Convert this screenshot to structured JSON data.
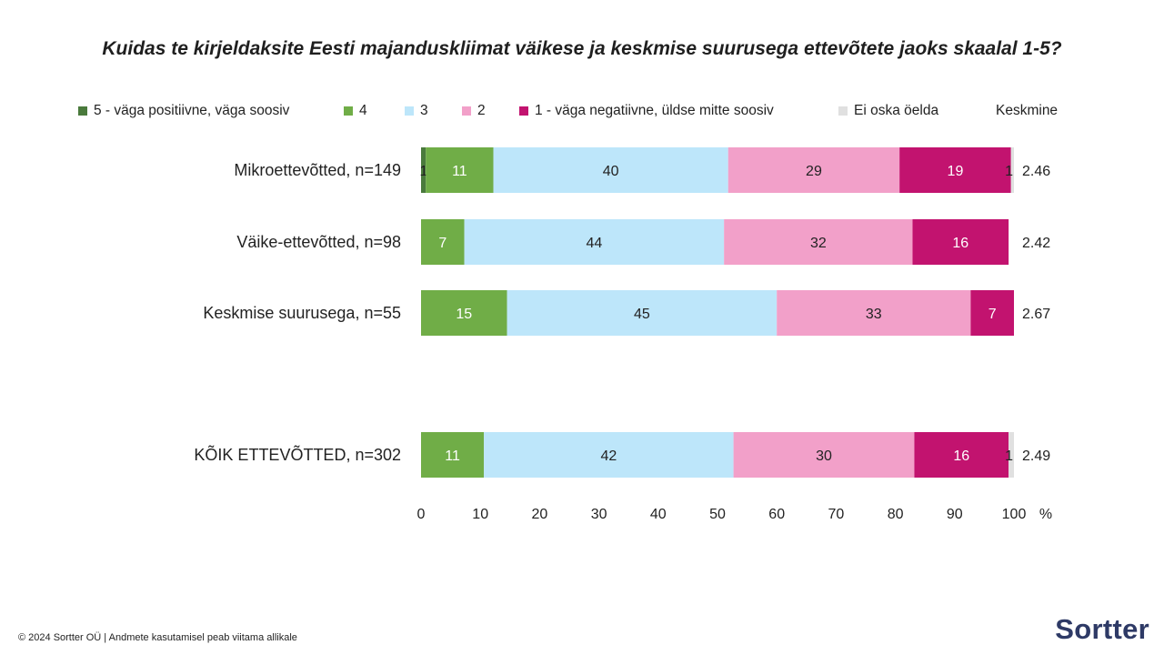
{
  "colors": {
    "cat5": "#4a7a3c",
    "cat4": "#70ad47",
    "cat3": "#bde6fa",
    "cat2": "#f2a0c9",
    "cat1": "#c2136f",
    "cat0": "#e0e0e0"
  },
  "footer": "© 2024 Sortter OÜ | Andmete kasutamisel peab viitama allikale",
  "logo": "Sortter",
  "chart_data": {
    "type": "bar",
    "orientation": "horizontal",
    "stacked": true,
    "title": "Kuidas te kirjeldaksite Eesti majanduskliimat väikese ja keskmise suurusega ettevõtete jaoks skaalal 1-5?",
    "categories": [
      "Mikroettevõtted, n=149",
      "Väike-ettevõtted, n=98",
      "Keskmise suurusega, n=55",
      "KÕIK ETTEVÕTTED, n=302"
    ],
    "series": [
      {
        "name": "5 - väga positiivne, väga soosiv",
        "color_key": "cat5",
        "values": [
          0.8,
          0,
          0,
          0
        ],
        "labels": [
          "1",
          "",
          "",
          ""
        ]
      },
      {
        "name": "4",
        "color_key": "cat4",
        "values": [
          11.4,
          7.3,
          14.5,
          10.6
        ],
        "labels": [
          "11",
          "7",
          "15",
          "11"
        ]
      },
      {
        "name": "3",
        "color_key": "cat3",
        "values": [
          39.6,
          43.8,
          45.5,
          42.1
        ],
        "labels": [
          "40",
          "44",
          "45",
          "42"
        ]
      },
      {
        "name": "2",
        "color_key": "cat2",
        "values": [
          28.9,
          31.8,
          32.7,
          30.5
        ],
        "labels": [
          "29",
          "32",
          "33",
          "30"
        ]
      },
      {
        "name": "1 - väga negatiivne, üldse mitte soosiv",
        "color_key": "cat1",
        "values": [
          18.8,
          16.2,
          7.3,
          15.9
        ],
        "labels": [
          "19",
          "16",
          "7",
          "16"
        ]
      },
      {
        "name": "Ei oska öelda",
        "color_key": "cat0",
        "values": [
          0.5,
          0,
          0,
          0.9
        ],
        "labels": [
          "1",
          "",
          "",
          "1"
        ]
      }
    ],
    "mean_header": "Keskmine",
    "means": [
      "2.46",
      "2.42",
      "2.67",
      "2.49"
    ],
    "xlim": [
      0,
      100
    ],
    "xticks": [
      "0",
      "10",
      "20",
      "30",
      "40",
      "50",
      "60",
      "70",
      "80",
      "90",
      "100"
    ],
    "x_unit": "%",
    "grid": false,
    "legend_position": "top"
  }
}
